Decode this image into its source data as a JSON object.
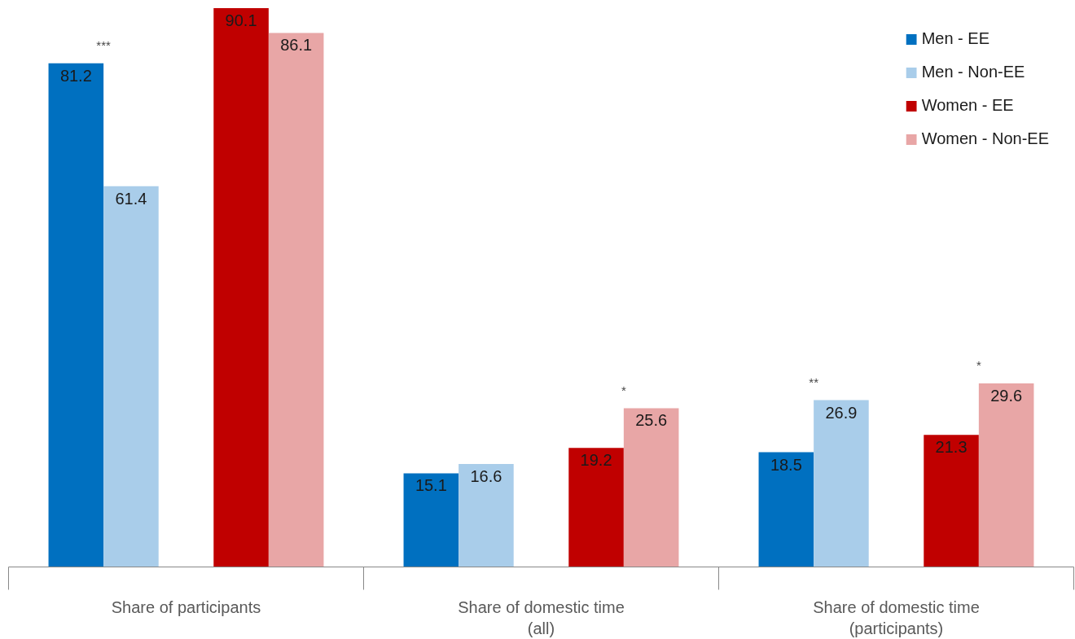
{
  "chart_data": {
    "type": "bar",
    "categories": [
      "Share of participants",
      "Share of domestic time (all)",
      "Share of domestic time (participants)"
    ],
    "series": [
      {
        "name": "Men - EE",
        "color": "#0070c0",
        "values": [
          81.2,
          15.1,
          18.5
        ]
      },
      {
        "name": "Men - Non-EE",
        "color": "#a9cdea",
        "values": [
          61.4,
          16.6,
          26.9
        ]
      },
      {
        "name": "Women - EE",
        "color": "#c00000",
        "values": [
          90.1,
          19.2,
          21.3
        ]
      },
      {
        "name": "Women - Non-EE",
        "color": "#e8a6a6",
        "values": [
          86.1,
          25.6,
          29.6
        ]
      }
    ],
    "data_labels": true,
    "annotations": [
      "***",
      "*",
      "**",
      "*"
    ],
    "legend": "top right",
    "grid": false
  }
}
